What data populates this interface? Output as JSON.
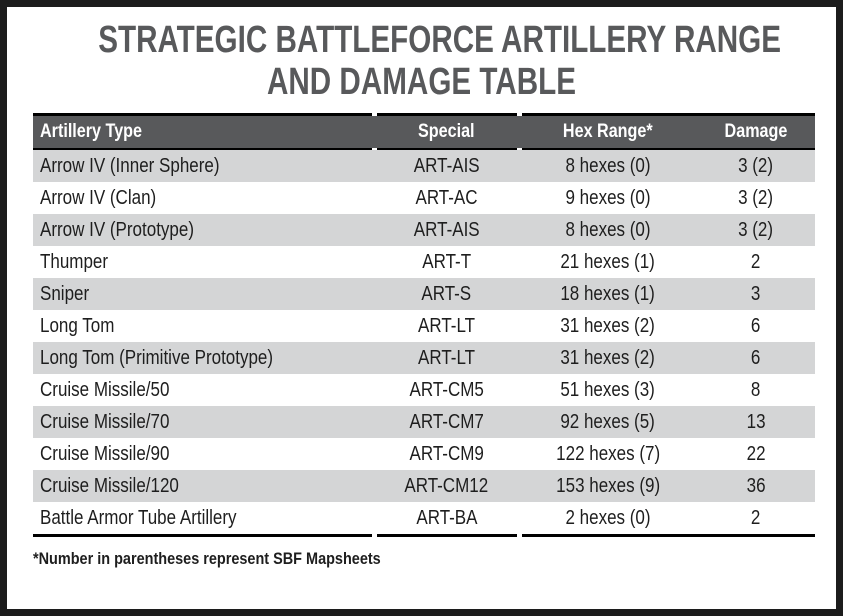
{
  "title": {
    "line1": "STRATEGIC BATTLEFORCE ARTILLERY RANGE",
    "line2": "AND DAMAGE TABLE"
  },
  "table": {
    "headers": [
      "Artillery Type",
      "Special",
      "Hex Range*",
      "Damage"
    ],
    "rows": [
      {
        "type": "Arrow IV (Inner Sphere)",
        "special": "ART-AIS",
        "range": "8 hexes (0)",
        "damage": "3 (2)"
      },
      {
        "type": "Arrow IV (Clan)",
        "special": "ART-AC",
        "range": "9 hexes (0)",
        "damage": "3 (2)"
      },
      {
        "type": "Arrow IV (Prototype)",
        "special": "ART-AIS",
        "range": "8 hexes (0)",
        "damage": "3 (2)"
      },
      {
        "type": "Thumper",
        "special": "ART-T",
        "range": "21 hexes (1)",
        "damage": "2"
      },
      {
        "type": "Sniper",
        "special": "ART-S",
        "range": "18 hexes (1)",
        "damage": "3"
      },
      {
        "type": "Long Tom",
        "special": "ART-LT",
        "range": "31 hexes (2)",
        "damage": "6"
      },
      {
        "type": "Long Tom (Primitive Prototype)",
        "special": "ART-LT",
        "range": "31 hexes (2)",
        "damage": "6"
      },
      {
        "type": "Cruise Missile/50",
        "special": "ART-CM5",
        "range": "51 hexes (3)",
        "damage": "8"
      },
      {
        "type": "Cruise Missile/70",
        "special": "ART-CM7",
        "range": "92 hexes (5)",
        "damage": "13"
      },
      {
        "type": "Cruise Missile/90",
        "special": "ART-CM9",
        "range": "122 hexes (7)",
        "damage": "22"
      },
      {
        "type": "Cruise Missile/120",
        "special": "ART-CM12",
        "range": "153 hexes (9)",
        "damage": "36"
      },
      {
        "type": "Battle Armor Tube Artillery",
        "special": "ART-BA",
        "range": "2 hexes (0)",
        "damage": "2"
      }
    ]
  },
  "footnote": "*Number in parentheses represent SBF Mapsheets",
  "colors": {
    "frame": "#1c1c1c",
    "title_text": "#58595b",
    "header_bg": "#58595b",
    "header_text": "#ffffff",
    "row_alt_bg": "#d4d5d6",
    "body_text": "#1e1e1e",
    "rule": "#000000"
  }
}
